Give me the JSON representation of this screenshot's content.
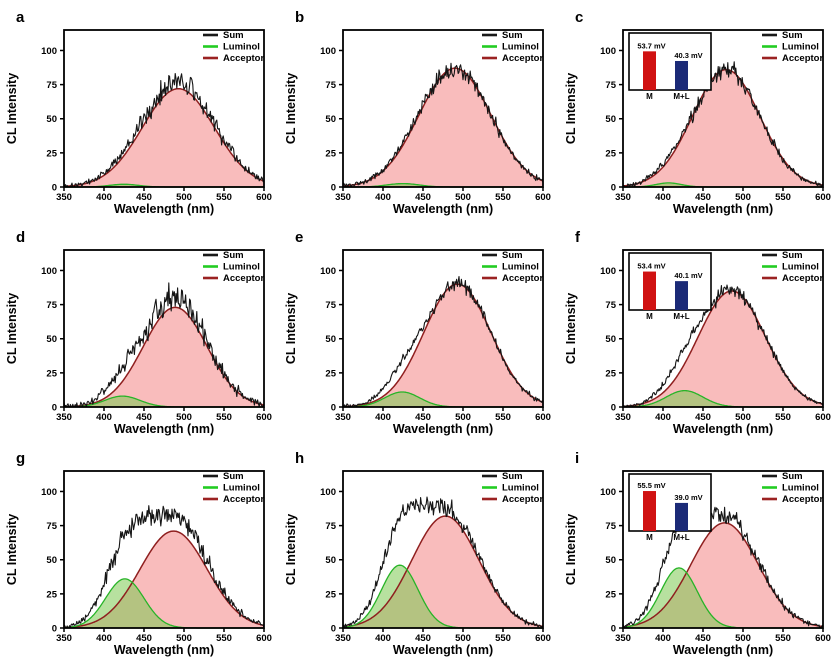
{
  "figure": {
    "kind": "nine-panel-CL-spectra",
    "xlabel": "Wavelength (nm)",
    "ylabel": "CL Intensity",
    "legend": [
      {
        "name": "Sum",
        "color": "#1a1a1a"
      },
      {
        "name": "Luminol",
        "color": "#22cc22"
      },
      {
        "name": "Acceptor",
        "color": "#9b2222"
      }
    ],
    "colors": {
      "sum_line": "#151515",
      "luminol_line": "#27b427",
      "luminol_fill": "rgba(124,200,80,0.55)",
      "acceptor_line": "#8f1f1f",
      "acceptor_fill": "rgba(243,122,122,0.50)",
      "inset_bar_m": "#d01212",
      "inset_bar_ml": "#1b2a77",
      "axis": "#000000"
    }
  },
  "chart_data": [
    {
      "panel": "a",
      "type": "line",
      "xlabel": "Wavelength (nm)",
      "ylabel": "CL Intensity",
      "xlim": [
        350,
        600
      ],
      "ylim": [
        0,
        115
      ],
      "xticks": [
        350,
        400,
        450,
        500,
        550,
        600
      ],
      "yticks": [
        0,
        25,
        50,
        75,
        100
      ],
      "legend": [
        "Sum",
        "Luminol",
        "Acceptor"
      ],
      "series": {
        "luminol": {
          "shape": "gaussian",
          "center": 425,
          "peak": 2,
          "sigma": 18
        },
        "acceptor": {
          "shape": "gaussian",
          "center": 493,
          "peak": 72,
          "sigma": 45
        },
        "sum": {
          "shape": "luminol+acceptor+noise",
          "scale": 1.08,
          "noise": 11,
          "seed": 101
        }
      },
      "inset": null
    },
    {
      "panel": "b",
      "type": "line",
      "xlabel": "Wavelength (nm)",
      "ylabel": "CL Intensity",
      "xlim": [
        350,
        600
      ],
      "ylim": [
        0,
        115
      ],
      "xticks": [
        350,
        400,
        450,
        500,
        550,
        600
      ],
      "yticks": [
        0,
        25,
        50,
        75,
        100
      ],
      "legend": [
        "Sum",
        "Luminol",
        "Acceptor"
      ],
      "series": {
        "luminol": {
          "shape": "gaussian",
          "center": 425,
          "peak": 2.5,
          "sigma": 20
        },
        "acceptor": {
          "shape": "gaussian",
          "center": 490,
          "peak": 87,
          "sigma": 45
        },
        "sum": {
          "shape": "luminol+acceptor+noise",
          "scale": 1.0,
          "noise": 8,
          "seed": 102
        }
      },
      "inset": null
    },
    {
      "panel": "c",
      "type": "line",
      "xlabel": "Wavelength (nm)",
      "ylabel": "CL Intensity",
      "xlim": [
        350,
        600
      ],
      "ylim": [
        0,
        115
      ],
      "xticks": [
        350,
        400,
        450,
        500,
        550,
        600
      ],
      "yticks": [
        0,
        25,
        50,
        75,
        100
      ],
      "legend": [
        "Sum",
        "Luminol",
        "Acceptor"
      ],
      "series": {
        "luminol": {
          "shape": "gaussian",
          "center": 407,
          "peak": 3,
          "sigma": 16
        },
        "acceptor": {
          "shape": "gaussian",
          "center": 479,
          "peak": 86,
          "sigma": 42
        },
        "sum": {
          "shape": "luminol+acceptor+noise",
          "scale": 1.0,
          "noise": 8,
          "seed": 103
        }
      },
      "inset": {
        "type": "bar",
        "categories": [
          "M",
          "M+L"
        ],
        "values": [
          53.7,
          40.3
        ],
        "value_labels": [
          "53.7 mV",
          "40.3 mV"
        ],
        "unit": "mV",
        "bar_colors": [
          "#d01212",
          "#1b2a77"
        ]
      }
    },
    {
      "panel": "d",
      "type": "line",
      "xlabel": "Wavelength (nm)",
      "ylabel": "CL Intensity",
      "xlim": [
        350,
        600
      ],
      "ylim": [
        0,
        115
      ],
      "xticks": [
        350,
        400,
        450,
        500,
        550,
        600
      ],
      "yticks": [
        0,
        25,
        50,
        75,
        100
      ],
      "legend": [
        "Sum",
        "Luminol",
        "Acceptor"
      ],
      "series": {
        "luminol": {
          "shape": "gaussian",
          "center": 423,
          "peak": 8,
          "sigma": 22
        },
        "acceptor": {
          "shape": "gaussian",
          "center": 489,
          "peak": 73,
          "sigma": 40
        },
        "sum": {
          "shape": "luminol+acceptor+noise",
          "scale": 1.1,
          "noise": 13,
          "seed": 104
        }
      },
      "inset": null
    },
    {
      "panel": "e",
      "type": "line",
      "xlabel": "Wavelength (nm)",
      "ylabel": "CL Intensity",
      "xlim": [
        350,
        600
      ],
      "ylim": [
        0,
        115
      ],
      "xticks": [
        350,
        400,
        450,
        500,
        550,
        600
      ],
      "yticks": [
        0,
        25,
        50,
        75,
        100
      ],
      "legend": [
        "Sum",
        "Luminol",
        "Acceptor"
      ],
      "series": {
        "luminol": {
          "shape": "gaussian",
          "center": 424,
          "peak": 11,
          "sigma": 22
        },
        "acceptor": {
          "shape": "gaussian",
          "center": 493,
          "peak": 90,
          "sigma": 42
        },
        "sum": {
          "shape": "luminol+acceptor+noise",
          "scale": 1.0,
          "noise": 6,
          "seed": 105
        }
      },
      "inset": null
    },
    {
      "panel": "f",
      "type": "line",
      "xlabel": "Wavelength (nm)",
      "ylabel": "CL Intensity",
      "xlim": [
        350,
        600
      ],
      "ylim": [
        0,
        115
      ],
      "xticks": [
        350,
        400,
        450,
        500,
        550,
        600
      ],
      "yticks": [
        0,
        25,
        50,
        75,
        100
      ],
      "legend": [
        "Sum",
        "Luminol",
        "Acceptor"
      ],
      "series": {
        "luminol": {
          "shape": "gaussian",
          "center": 427,
          "peak": 12,
          "sigma": 23
        },
        "acceptor": {
          "shape": "gaussian",
          "center": 486,
          "peak": 85,
          "sigma": 42
        },
        "sum": {
          "shape": "luminol+acceptor+noise",
          "scale": 1.0,
          "noise": 6,
          "seed": 106
        }
      },
      "inset": {
        "type": "bar",
        "categories": [
          "M",
          "M+L"
        ],
        "values": [
          53.4,
          40.1
        ],
        "value_labels": [
          "53.4 mV",
          "40.1 mV"
        ],
        "unit": "mV",
        "bar_colors": [
          "#d01212",
          "#1b2a77"
        ]
      }
    },
    {
      "panel": "g",
      "type": "line",
      "xlabel": "Wavelength (nm)",
      "ylabel": "CL Intensity",
      "xlim": [
        350,
        600
      ],
      "ylim": [
        0,
        115
      ],
      "xticks": [
        350,
        400,
        450,
        500,
        550,
        600
      ],
      "yticks": [
        0,
        25,
        50,
        75,
        100
      ],
      "legend": [
        "Sum",
        "Luminol",
        "Acceptor"
      ],
      "series": {
        "luminol": {
          "shape": "gaussian",
          "center": 426,
          "peak": 36,
          "sigma": 24
        },
        "acceptor": {
          "shape": "gaussian",
          "center": 487,
          "peak": 71,
          "sigma": 42
        },
        "sum": {
          "shape": "luminol+acceptor+noise",
          "scale": 1.14,
          "noise": 10,
          "seed": 107
        }
      },
      "inset": null
    },
    {
      "panel": "h",
      "type": "line",
      "xlabel": "Wavelength (nm)",
      "ylabel": "CL Intensity",
      "xlim": [
        350,
        600
      ],
      "ylim": [
        0,
        115
      ],
      "xticks": [
        350,
        400,
        450,
        500,
        550,
        600
      ],
      "yticks": [
        0,
        25,
        50,
        75,
        100
      ],
      "legend": [
        "Sum",
        "Luminol",
        "Acceptor"
      ],
      "series": {
        "luminol": {
          "shape": "gaussian",
          "center": 421,
          "peak": 46,
          "sigma": 23
        },
        "acceptor": {
          "shape": "gaussian",
          "center": 478,
          "peak": 82,
          "sigma": 42
        },
        "sum": {
          "shape": "luminol+acceptor+noise",
          "scale": 1.05,
          "noise": 8,
          "seed": 108
        }
      },
      "inset": null
    },
    {
      "panel": "i",
      "type": "line",
      "xlabel": "Wavelength (nm)",
      "ylabel": "CL Intensity",
      "xlim": [
        350,
        600
      ],
      "ylim": [
        0,
        115
      ],
      "xticks": [
        350,
        400,
        450,
        500,
        550,
        600
      ],
      "yticks": [
        0,
        25,
        50,
        75,
        100
      ],
      "legend": [
        "Sum",
        "Luminol",
        "Acceptor"
      ],
      "series": {
        "luminol": {
          "shape": "gaussian",
          "center": 420,
          "peak": 44,
          "sigma": 23
        },
        "acceptor": {
          "shape": "gaussian",
          "center": 477,
          "peak": 77,
          "sigma": 42
        },
        "sum": {
          "shape": "luminol+acceptor+noise",
          "scale": 1.05,
          "noise": 9,
          "seed": 109
        }
      },
      "inset": {
        "type": "bar",
        "categories": [
          "M",
          "M+L"
        ],
        "values": [
          55.5,
          39.0
        ],
        "value_labels": [
          "55.5 mV",
          "39.0 mV"
        ],
        "unit": "mV",
        "bar_colors": [
          "#d01212",
          "#1b2a77"
        ]
      }
    }
  ]
}
